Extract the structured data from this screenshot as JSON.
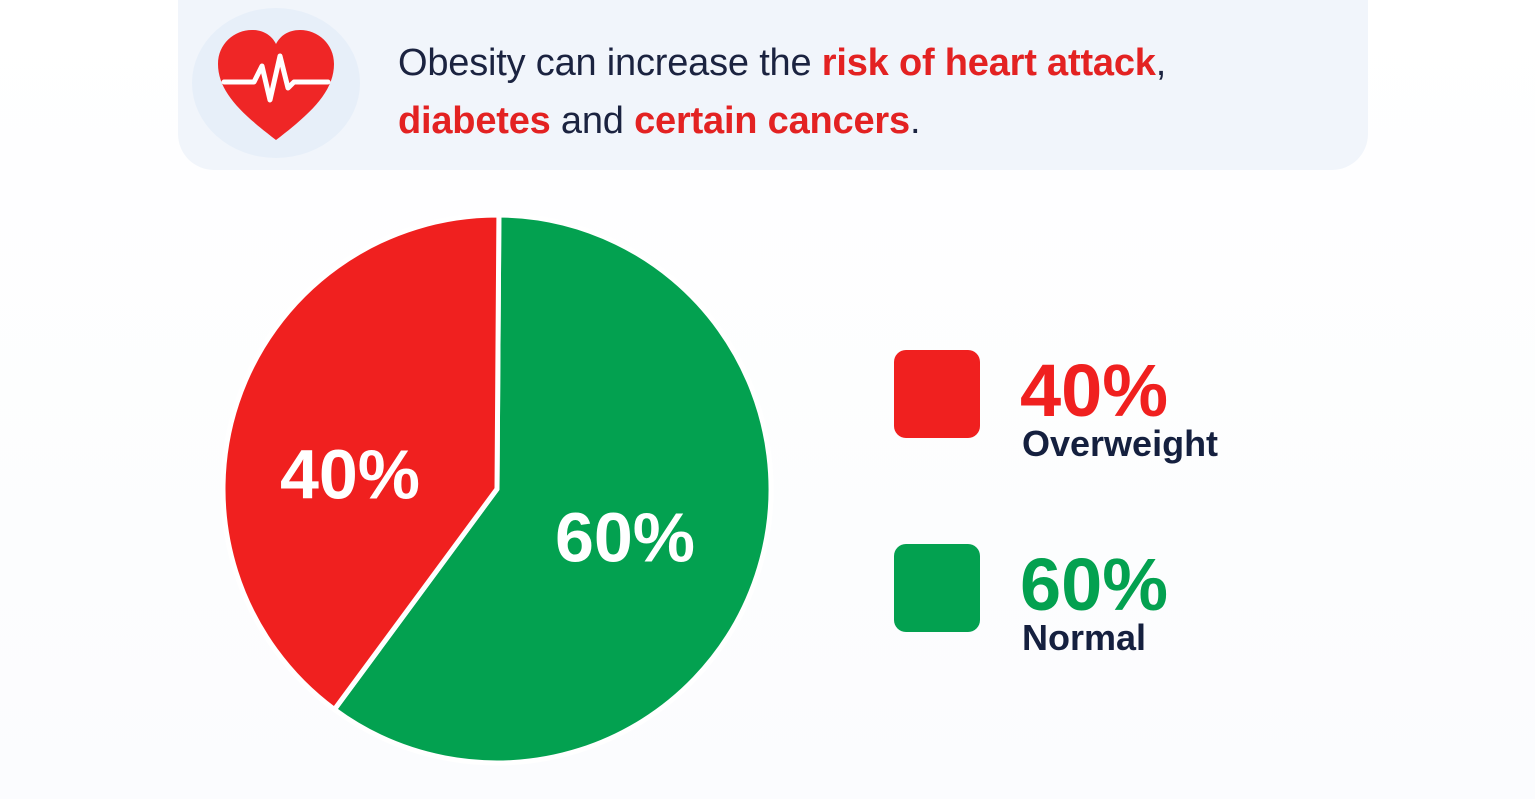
{
  "header": {
    "line1_plain": "Obesity can increase the ",
    "line1_highlight": "risk of heart attack",
    "line1_end": ",",
    "line2_highlight_a": "diabetes",
    "line2_plain": " and ",
    "line2_highlight_b": "certain cancers",
    "line2_end": ".",
    "icon": "heart-pulse-icon"
  },
  "colors": {
    "overweight": "#f0201f",
    "normal": "#03a150",
    "text_dark": "#15203f",
    "banner_bg": "#f1f5fb"
  },
  "chart_data": {
    "type": "pie",
    "title": "",
    "slices": [
      {
        "label": "Overweight",
        "value": 40,
        "display": "40%",
        "color": "#f0201f"
      },
      {
        "label": "Normal",
        "value": 60,
        "display": "60%",
        "color": "#03a150"
      }
    ],
    "legend_position": "right"
  },
  "legend": [
    {
      "value": "40%",
      "label": "Overweight",
      "color": "#f0201f"
    },
    {
      "value": "60%",
      "label": "Normal",
      "color": "#03a150"
    }
  ]
}
